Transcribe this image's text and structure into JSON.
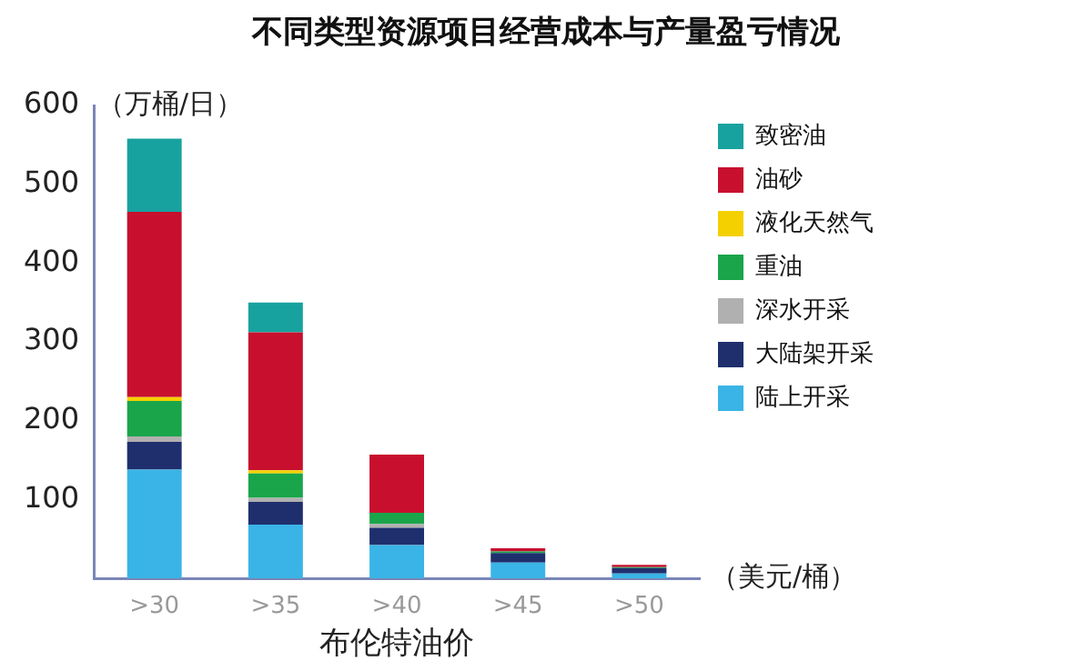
{
  "chart_data": {
    "type": "bar",
    "title": "不同类型资源项目经营成本与产量盈亏情况",
    "xlabel": "布伦特油价",
    "ylabel": "（万桶/日）",
    "annotations": [
      "（美元/桶）"
    ],
    "categories": [
      ">30",
      ">35",
      ">40",
      ">45",
      ">50"
    ],
    "stacked": true,
    "series": [
      {
        "name": "陆上开采",
        "color": "#3ab4e6",
        "values": [
          138,
          68,
          42,
          20,
          6
        ]
      },
      {
        "name": "大陆架开采",
        "color": "#1f2f6e",
        "values": [
          35,
          29,
          22,
          12,
          7
        ]
      },
      {
        "name": "深水开采",
        "color": "#b0b0b0",
        "values": [
          7,
          5,
          5,
          null,
          null
        ]
      },
      {
        "name": "重油",
        "color": "#1aa54a",
        "values": [
          45,
          31,
          14,
          2,
          1
        ]
      },
      {
        "name": "液化天然气",
        "color": "#f5d000",
        "values": [
          5,
          4,
          0,
          0,
          0
        ]
      },
      {
        "name": "油砂",
        "color": "#c8102e",
        "values": [
          235,
          175,
          74,
          4,
          3
        ]
      },
      {
        "name": "致密油",
        "color": "#17a2a0",
        "values": [
          93,
          38,
          0,
          0,
          0
        ]
      }
    ],
    "ylim": [
      0,
      600
    ],
    "yticks": [
      100,
      200,
      300,
      400,
      500,
      600
    ],
    "grid": false,
    "legend": "top right"
  }
}
